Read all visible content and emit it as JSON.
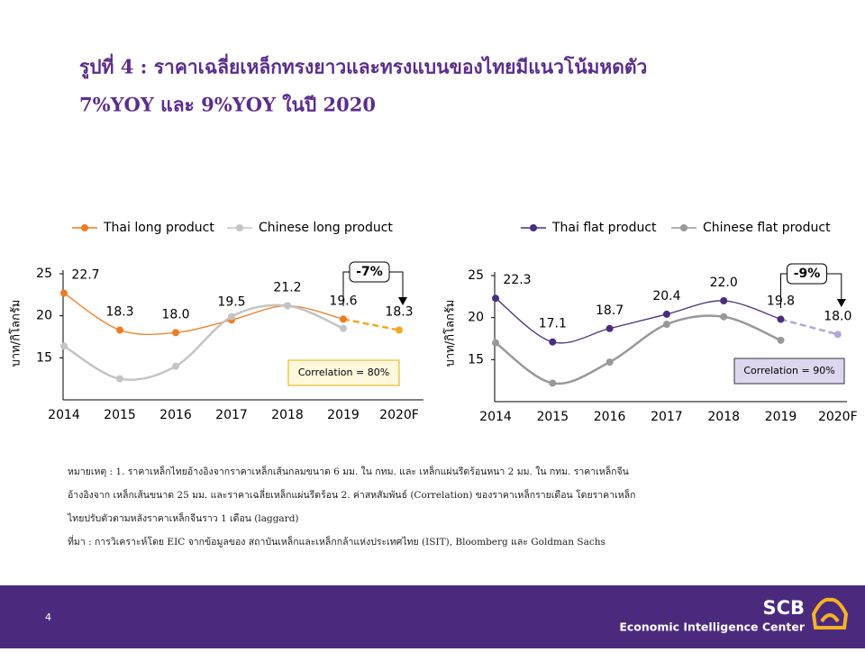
{
  "title_line1": "รูปที่ 4 : ราคาเฉลี่ยเหล็กทรงยาวและทรงแบนของไทยมีแนวโน้มหดตัว",
  "title_line2": "7%YOY และ 9%YOY ในปี 2020",
  "notes": [
    "หมายเหตุ : 1. ราคาเหล็กไทยอ้างอิงจากราคาเหล็กเส้นกลมขนาด  6 มม. ใน กทม. และ เหล็กแผ่นรีดร้อนหนา 2 มม. ใน กทม. ราคาเหล็กจีน",
    "อ้างอิงจาก เหล็กเส้นขนาด 25 มม. และราคาเฉลี่ยเหล็กแผ่นรีดร้อน  2. ค่าสหสัมพันธ์ (Correlation) ของราคาเหล็กรายเดือน  โดยราคาเหล็ก",
    "ไทยปรับตัวตามหลังราคาเหล็กจีนราว  1 เดือน (laggard)",
    "ที่มา : การวิเคราะห์โดย  EIC จากข้อมูลของ  สถาบันเหล็กและเหล็กกล้าแห่งประเทศไทย  (ISIT), Bloomberg และ Goldman Sachs"
  ],
  "page_number": "4",
  "logo": "SCB",
  "logo_subtitle": "Economic Intelligence Center",
  "chart_data": [
    {
      "type": "line",
      "y_label": "บาท/กิโลกรัม",
      "categories": [
        "2014",
        "2015",
        "2016",
        "2017",
        "2018",
        "2019",
        "2020F"
      ],
      "ylim": [
        10,
        25
      ],
      "yticks": [
        15,
        20,
        25
      ],
      "annotation": "-7%",
      "correlation_label": "Correlation = 80%",
      "series": [
        {
          "name": "Thai long product",
          "color": "#ed7d22",
          "forecast_color": "#f5a623",
          "values": [
            22.7,
            18.3,
            18.0,
            19.5,
            21.2,
            19.6,
            18.3
          ],
          "value_labels": [
            "22.7",
            "18.3",
            "18.0",
            "19.5",
            "21.2",
            "19.6",
            "18.3"
          ]
        },
        {
          "name": "Chinese long product",
          "color": "#c4c4c4",
          "values": [
            16.4,
            12.5,
            14.0,
            19.9,
            21.2,
            18.5,
            null
          ]
        }
      ]
    },
    {
      "type": "line",
      "y_label": "บาท/กิโลกรัม",
      "categories": [
        "2014",
        "2015",
        "2016",
        "2017",
        "2018",
        "2019",
        "2020F"
      ],
      "ylim": [
        10,
        25
      ],
      "yticks": [
        15,
        20,
        25
      ],
      "annotation": "-9%",
      "correlation_label": "Correlation = 90%",
      "series": [
        {
          "name": "Thai flat product",
          "color": "#4b2d7f",
          "forecast_color": "#b4a6dc",
          "values": [
            22.3,
            17.1,
            18.7,
            20.4,
            22.0,
            19.8,
            18.0
          ],
          "value_labels": [
            "22.3",
            "17.1",
            "18.7",
            "20.4",
            "22.0",
            "19.8",
            "18.0"
          ]
        },
        {
          "name": "Chinese flat product",
          "color": "#999999",
          "values": [
            17.0,
            12.2,
            14.7,
            19.2,
            20.1,
            17.3,
            null
          ]
        }
      ]
    }
  ]
}
